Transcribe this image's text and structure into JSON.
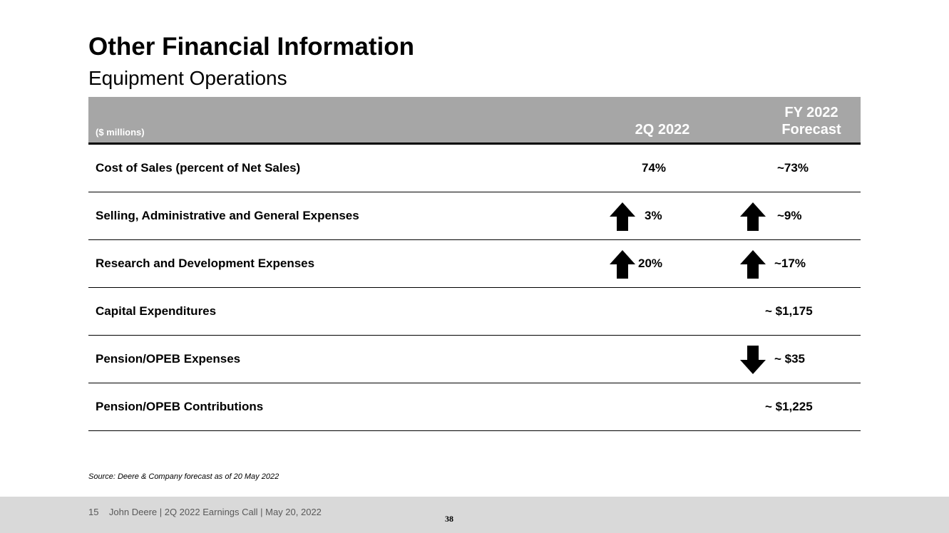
{
  "header": {
    "title": "Other Financial Information",
    "subtitle": "Equipment Operations"
  },
  "table": {
    "units_label": "($ millions)",
    "col1_header": "2Q 2022",
    "col2_header_line1": "FY 2022",
    "col2_header_line2": "Forecast",
    "rows": [
      {
        "label": "Cost of Sales (percent of Net Sales)",
        "q2": "74%",
        "q2_arrow": "",
        "fy": "~73%",
        "fy_arrow": ""
      },
      {
        "label": "Selling, Administrative and General Expenses",
        "q2": "3%",
        "q2_arrow": "up-arrow-icon",
        "fy": "~9%",
        "fy_arrow": "up-arrow-icon"
      },
      {
        "label": "Research and Development Expenses",
        "q2": "20%",
        "q2_arrow": "up-arrow-icon",
        "fy": "~17%",
        "fy_arrow": "up-arrow-icon"
      },
      {
        "label": "Capital Expenditures",
        "q2": "",
        "q2_arrow": "",
        "fy": "~ $1,175",
        "fy_arrow": ""
      },
      {
        "label": "Pension/OPEB Expenses",
        "q2": "",
        "q2_arrow": "",
        "fy": "~ $35",
        "fy_arrow": "down-arrow-icon"
      },
      {
        "label": "Pension/OPEB Contributions",
        "q2": "",
        "q2_arrow": "",
        "fy": "~ $1,225",
        "fy_arrow": ""
      }
    ]
  },
  "source_note": "Source: Deere & Company forecast as of 20 May 2022",
  "footer": {
    "slide_number": "15",
    "text": "John Deere | 2Q 2022 Earnings Call | May 20, 2022",
    "page_number": "38"
  },
  "colors": {
    "header_band": "#a6a6a6",
    "footer_band": "#d9d9d9",
    "footer_text": "#595959"
  }
}
